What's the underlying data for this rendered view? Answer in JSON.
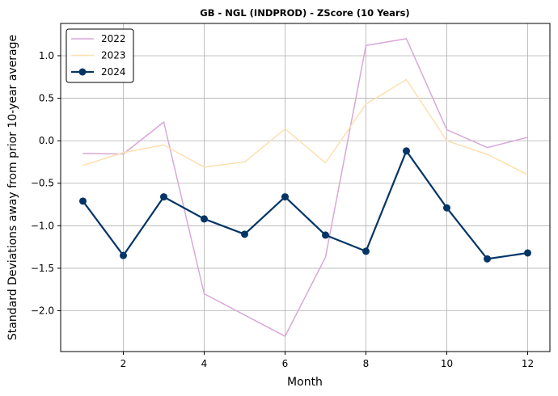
{
  "chart_data": {
    "type": "line",
    "title": "GB - NGL (INDPROD) - ZScore (10 Years)",
    "xlabel": "Month",
    "ylabel": "Standard Deviations away from prior 10-year average",
    "xlim": [
      0.45,
      12.55
    ],
    "ylim": [
      -2.48,
      1.38
    ],
    "xticks": [
      2,
      4,
      6,
      8,
      10,
      12
    ],
    "yticks": [
      -2.0,
      -1.5,
      -1.0,
      -0.5,
      0.0,
      0.5,
      1.0
    ],
    "ytick_labels": [
      "−2.0",
      "−1.5",
      "−1.0",
      "−0.5",
      "0.0",
      "0.5",
      "1.0"
    ],
    "grid": true,
    "legend_position": "top-left",
    "x": [
      1,
      2,
      3,
      4,
      5,
      6,
      7,
      8,
      9,
      10,
      11,
      12
    ],
    "series": [
      {
        "name": "2022",
        "color": "#d8a8d8",
        "width": 1.5,
        "markers": false,
        "values": [
          -0.15,
          -0.155,
          0.22,
          -1.8,
          -2.05,
          -2.3,
          -1.37,
          1.12,
          1.2,
          0.13,
          -0.08,
          0.04
        ]
      },
      {
        "name": "2023",
        "color": "#fde0b0",
        "width": 1.5,
        "markers": false,
        "values": [
          -0.29,
          -0.14,
          -0.05,
          -0.31,
          -0.25,
          0.14,
          -0.26,
          0.43,
          0.72,
          0.0,
          -0.16,
          -0.4
        ]
      },
      {
        "name": "2024",
        "color": "#043566",
        "width": 2.2,
        "markers": true,
        "values": [
          -0.71,
          -1.35,
          -0.66,
          -0.92,
          -1.1,
          -0.66,
          -1.11,
          -1.3,
          -0.12,
          -0.79,
          -1.39,
          -1.32
        ]
      }
    ]
  }
}
